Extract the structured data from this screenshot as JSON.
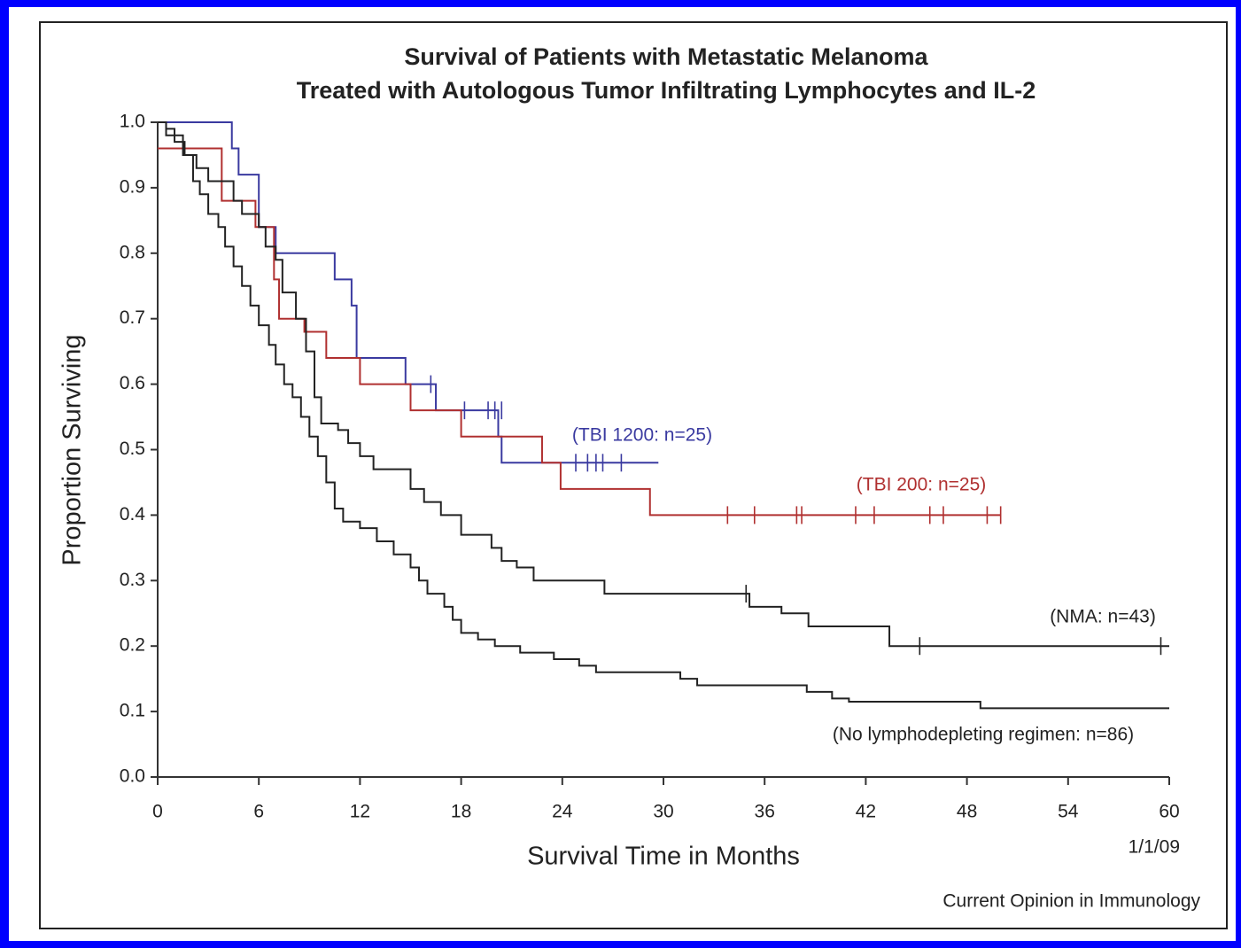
{
  "chart_data": {
    "type": "line",
    "step": "post",
    "title": [
      "Survival of Patients with Metastatic Melanoma",
      "Treated with Autologous Tumor Infiltrating Lymphocytes and IL-2"
    ],
    "xlabel": "Survival Time in Months",
    "ylabel": "Proportion Surviving",
    "date_note": "1/1/09",
    "source": "Current Opinion in Immunology",
    "xlim": [
      0,
      60
    ],
    "xticks": [
      0,
      6,
      12,
      18,
      24,
      30,
      36,
      42,
      48,
      54,
      60
    ],
    "ylim": [
      0,
      1
    ],
    "yticks": [
      {
        "value": 0,
        "label": "0.0"
      },
      0.1,
      0.2,
      0.3,
      0.4,
      0.5,
      0.6,
      0.7,
      0.8,
      0.9,
      {
        "value": 1,
        "label": "1.0"
      }
    ],
    "series": [
      {
        "name": "(TBI 1200: n=25)",
        "color": "#3a3aa0",
        "x": [
          0,
          4.4,
          4.8,
          6,
          7,
          10.5,
          11.5,
          11.8,
          14.7,
          16.5,
          20.2,
          20.4,
          29.7
        ],
        "values": [
          1,
          0.96,
          0.92,
          0.84,
          0.8,
          0.76,
          0.72,
          0.64,
          0.6,
          0.56,
          0.52,
          0.48,
          0.48
        ],
        "censor_x": [
          16.2,
          18.2,
          19.6,
          20.0,
          20.4,
          24.8,
          25.5,
          26.0,
          26.4,
          27.5
        ],
        "censor_y": [
          0.6,
          0.56,
          0.56,
          0.56,
          0.56,
          0.48,
          0.48,
          0.48,
          0.48,
          0.48
        ]
      },
      {
        "name": "(TBI 200: n=25)",
        "color": "#b03030",
        "x": [
          0,
          3.8,
          5.8,
          6.9,
          7.2,
          8.7,
          10,
          12,
          15,
          18,
          22.8,
          23.9,
          29.2,
          50
        ],
        "values": [
          0.96,
          0.88,
          0.84,
          0.76,
          0.7,
          0.68,
          0.64,
          0.6,
          0.56,
          0.52,
          0.48,
          0.44,
          0.4,
          0.4
        ],
        "censor_x": [
          33.8,
          35.4,
          37.9,
          38.2,
          41.4,
          42.5,
          45.8,
          46.6,
          49.2,
          50
        ],
        "censor_y": [
          0.4,
          0.4,
          0.4,
          0.4,
          0.4,
          0.4,
          0.4,
          0.4,
          0.4,
          0.4
        ]
      },
      {
        "name": "(NMA: n=43)",
        "color": "#222222",
        "x": [
          0,
          0.5,
          1.5,
          2.3,
          3,
          4.5,
          5,
          6,
          6.4,
          7,
          7.4,
          8.2,
          8.8,
          9.3,
          9.7,
          10.7,
          11.3,
          12,
          12.8,
          15,
          15.8,
          16.8,
          18,
          19.8,
          20.4,
          21.3,
          22.3,
          26.5,
          35.1,
          37,
          38.6,
          43.4,
          60
        ],
        "values": [
          1,
          0.98,
          0.95,
          0.93,
          0.91,
          0.88,
          0.86,
          0.84,
          0.81,
          0.79,
          0.74,
          0.7,
          0.65,
          0.58,
          0.54,
          0.53,
          0.51,
          0.49,
          0.47,
          0.44,
          0.42,
          0.4,
          0.37,
          0.35,
          0.33,
          0.32,
          0.3,
          0.28,
          0.26,
          0.25,
          0.23,
          0.2,
          0.2
        ],
        "censor_x": [
          34.9,
          45.2,
          59.5
        ],
        "censor_y": [
          0.28,
          0.2,
          0.2
        ]
      },
      {
        "name": "(No lymphodepleting regimen: n=86)",
        "color": "#222222",
        "x": [
          0,
          0.5,
          1,
          1.6,
          2.1,
          2.5,
          3,
          3.6,
          4,
          4.5,
          5,
          5.5,
          6,
          6.6,
          7,
          7.5,
          8,
          8.5,
          9,
          9.5,
          10,
          10.5,
          11,
          12,
          13,
          14,
          15,
          15.5,
          16,
          17,
          17.5,
          18,
          19,
          20,
          21.5,
          23.5,
          25,
          26,
          31,
          32,
          38.5,
          40,
          41,
          48.8,
          60
        ],
        "values": [
          1,
          0.99,
          0.97,
          0.95,
          0.91,
          0.89,
          0.86,
          0.84,
          0.81,
          0.78,
          0.75,
          0.72,
          0.69,
          0.66,
          0.63,
          0.6,
          0.58,
          0.55,
          0.52,
          0.49,
          0.45,
          0.41,
          0.39,
          0.38,
          0.36,
          0.34,
          0.32,
          0.3,
          0.28,
          0.26,
          0.24,
          0.22,
          0.21,
          0.2,
          0.19,
          0.18,
          0.17,
          0.16,
          0.15,
          0.14,
          0.13,
          0.12,
          0.115,
          0.105,
          0.105
        ],
        "censor_x": [],
        "censor_y": []
      }
    ]
  }
}
